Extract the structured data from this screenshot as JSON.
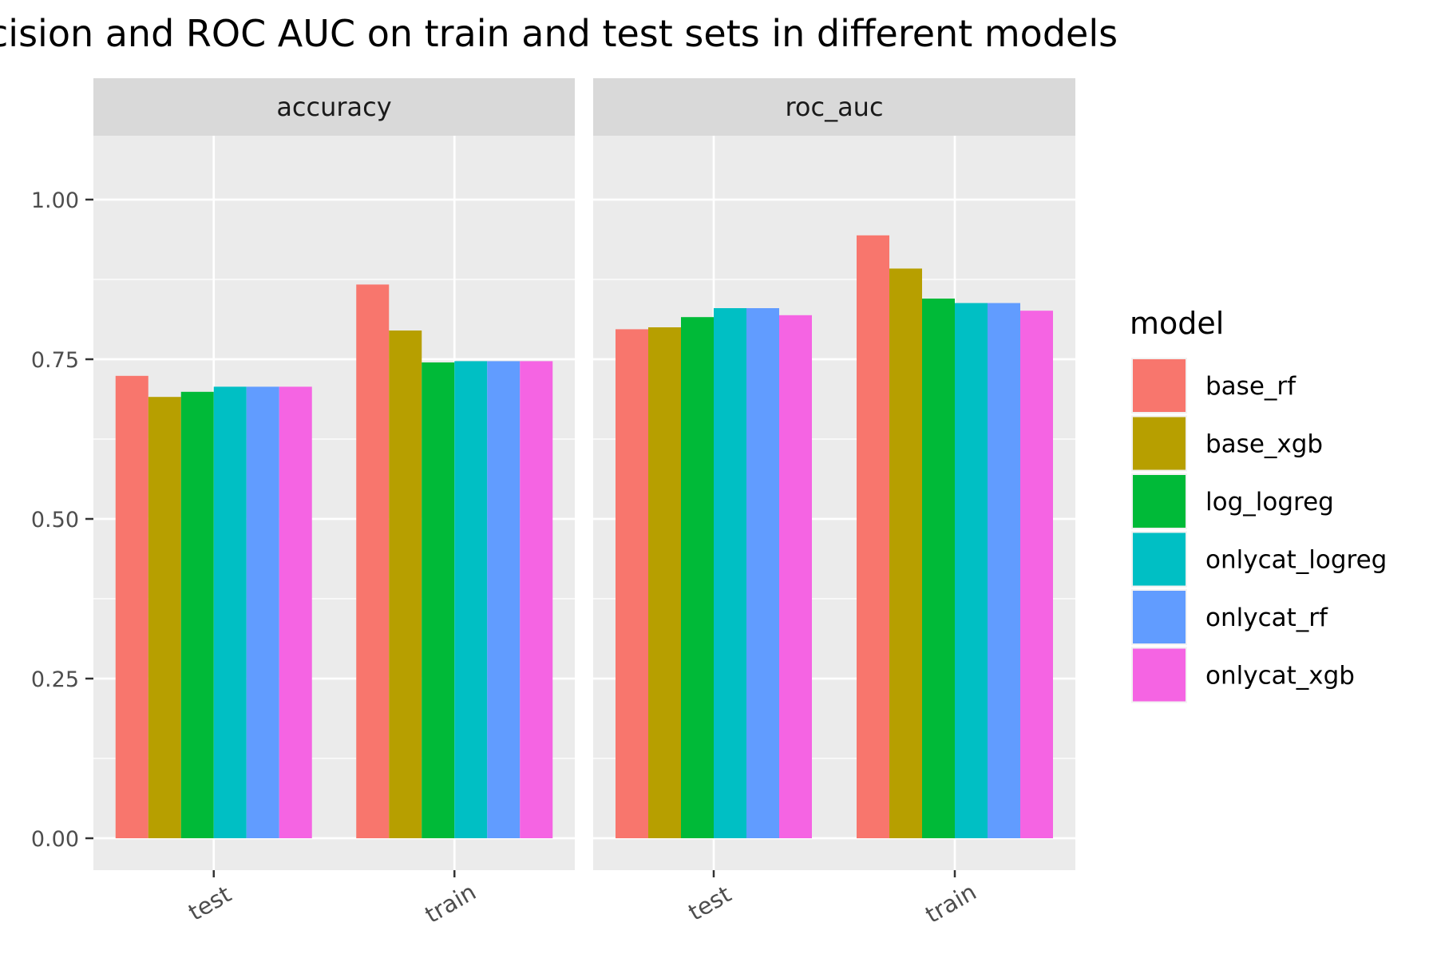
{
  "chart_data": {
    "type": "bar",
    "title": "cision and ROC AUC on train and test sets in different models",
    "categories": [
      "test",
      "train"
    ],
    "facets": [
      {
        "name": "accuracy",
        "series": [
          {
            "name": "base_rf",
            "values": [
              0.724,
              0.867
            ]
          },
          {
            "name": "base_xgb",
            "values": [
              0.691,
              0.795
            ]
          },
          {
            "name": "log_logreg",
            "values": [
              0.699,
              0.745
            ]
          },
          {
            "name": "onlycat_logreg",
            "values": [
              0.707,
              0.747
            ]
          },
          {
            "name": "onlycat_rf",
            "values": [
              0.707,
              0.747
            ]
          },
          {
            "name": "onlycat_xgb",
            "values": [
              0.707,
              0.747
            ]
          }
        ]
      },
      {
        "name": "roc_auc",
        "series": [
          {
            "name": "base_rf",
            "values": [
              0.797,
              0.944
            ]
          },
          {
            "name": "base_xgb",
            "values": [
              0.8,
              0.892
            ]
          },
          {
            "name": "log_logreg",
            "values": [
              0.816,
              0.845
            ]
          },
          {
            "name": "onlycat_logreg",
            "values": [
              0.83,
              0.838
            ]
          },
          {
            "name": "onlycat_rf",
            "values": [
              0.83,
              0.838
            ]
          },
          {
            "name": "onlycat_xgb",
            "values": [
              0.819,
              0.826
            ]
          }
        ]
      }
    ],
    "ylim": [
      -0.05,
      1.1
    ],
    "yticks": [
      0.0,
      0.25,
      0.5,
      0.75,
      1.0
    ],
    "ytick_labels": [
      "0.00",
      "0.25",
      "0.50",
      "0.75",
      "1.00"
    ],
    "xlabel": "",
    "ylabel": "",
    "grid": true,
    "legend": {
      "title": "model",
      "position": "right",
      "entries": [
        {
          "name": "base_rf",
          "color": "#F8766D"
        },
        {
          "name": "base_xgb",
          "color": "#B79F00"
        },
        {
          "name": "log_logreg",
          "color": "#00BA38"
        },
        {
          "name": "onlycat_logreg",
          "color": "#00BFC4"
        },
        {
          "name": "onlycat_rf",
          "color": "#619CFF"
        },
        {
          "name": "onlycat_xgb",
          "color": "#F564E3"
        }
      ]
    },
    "colors": {
      "panel_background": "#EBEBEB",
      "strip_background": "#D9D9D9",
      "grid": "#FFFFFF",
      "tick": "#333333"
    }
  }
}
